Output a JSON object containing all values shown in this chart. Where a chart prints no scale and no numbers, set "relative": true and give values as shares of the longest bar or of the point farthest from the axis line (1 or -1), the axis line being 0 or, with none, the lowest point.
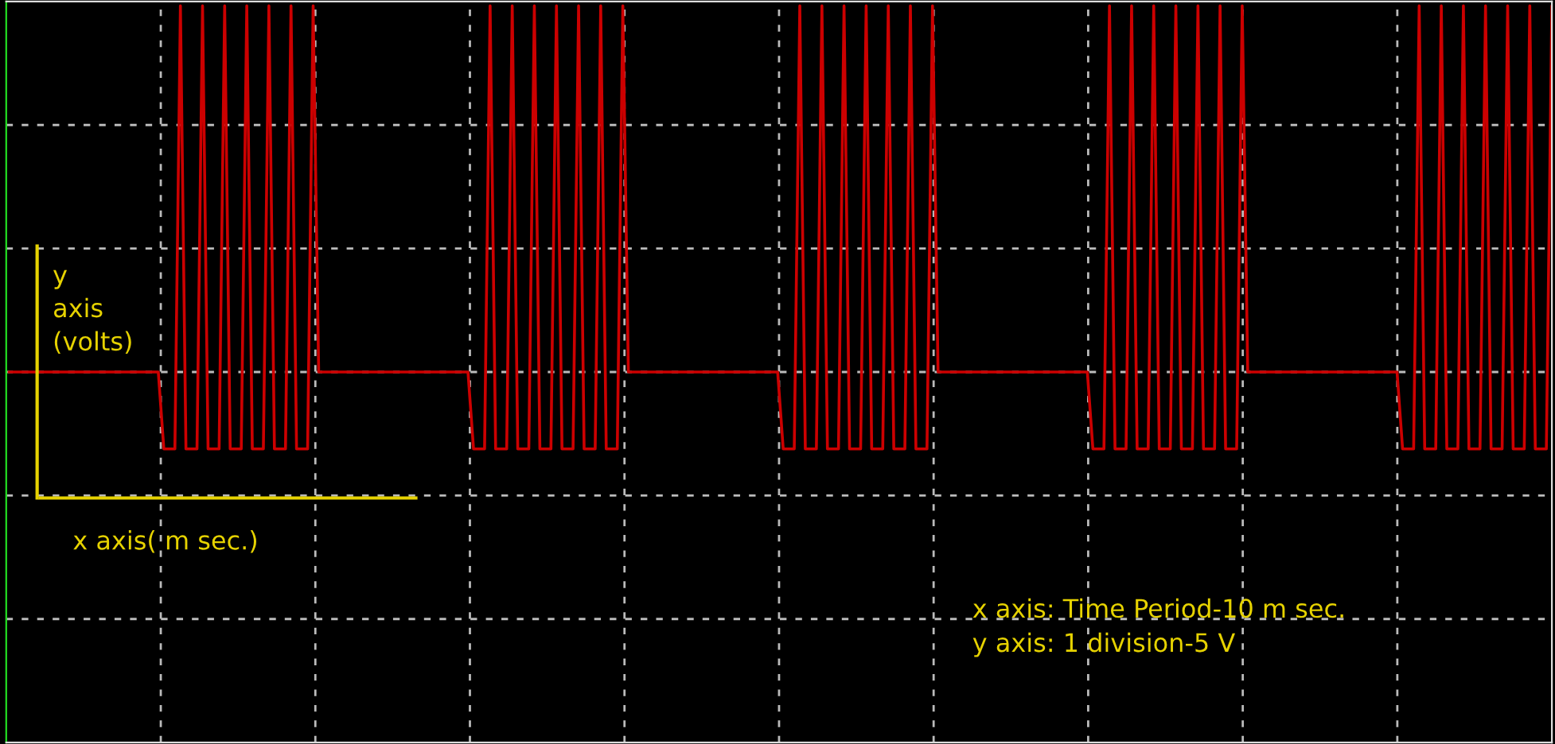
{
  "chart_data": {
    "type": "line",
    "relative": true,
    "grid": true,
    "xlabel": "x axis( m sec.)",
    "ylabel": "y\naxis\n(volts)",
    "annotations": [
      "x axis: Time Period-10 m sec.\ny axis: 1 division-5 V"
    ],
    "categories": [
      null,
      null,
      null,
      null,
      null,
      null,
      null,
      null,
      null,
      null,
      null,
      null,
      null,
      null,
      null,
      null,
      null,
      null,
      null,
      null,
      null,
      null,
      null,
      null,
      null,
      null,
      null,
      null,
      null,
      null,
      null,
      null,
      null,
      null,
      null,
      null,
      null,
      null,
      null,
      null,
      null,
      null,
      null,
      null,
      null,
      null,
      null,
      null,
      null,
      null,
      null,
      null,
      null,
      null,
      null,
      null,
      null,
      null,
      null,
      null,
      null,
      null,
      null,
      null,
      null,
      null,
      null,
      null,
      null,
      null,
      null,
      null,
      null,
      null,
      null,
      null,
      null,
      null,
      null,
      null,
      null,
      null,
      null,
      null,
      null,
      null,
      null,
      null,
      null,
      null,
      null,
      null,
      null,
      null,
      null,
      null,
      null,
      null,
      null,
      null,
      null,
      null,
      null,
      null,
      null,
      null,
      null,
      null,
      null,
      null,
      null,
      null,
      null,
      null,
      null,
      null,
      null,
      null,
      null,
      null,
      null,
      null,
      null,
      null,
      null,
      null,
      null,
      null,
      null,
      null,
      null,
      null,
      null,
      null,
      null,
      null,
      null,
      null,
      null,
      null,
      null,
      null,
      null,
      null,
      null,
      null,
      null,
      null,
      null,
      null,
      null,
      null,
      null,
      null,
      null,
      null,
      null,
      null,
      null,
      null,
      null,
      null,
      null,
      null,
      null,
      null,
      null,
      null,
      null,
      null,
      null,
      null,
      null,
      null,
      null,
      null,
      null,
      null,
      null,
      null,
      null,
      null,
      null,
      null,
      null,
      null,
      null,
      null,
      null,
      null,
      null,
      null,
      null,
      null,
      null,
      null,
      null,
      null,
      null,
      null,
      null,
      null,
      null,
      null,
      null,
      null,
      null,
      null,
      null,
      null,
      null,
      null,
      null,
      null,
      null,
      null,
      null,
      null,
      null,
      null,
      null,
      null,
      null,
      null,
      null,
      null,
      null,
      null,
      null,
      null,
      null,
      null,
      null,
      null,
      null,
      null,
      null,
      null,
      null,
      null,
      null,
      null,
      null,
      null,
      null,
      null,
      null,
      null,
      null,
      null,
      null,
      null,
      null,
      null,
      null,
      null,
      null,
      null,
      null,
      null,
      null,
      null,
      null,
      null,
      null,
      null,
      null,
      null,
      null,
      null,
      null,
      null,
      null,
      null,
      null,
      null,
      null,
      null,
      null,
      null
    ],
    "series": [
      {
        "color": "#cc0000",
        "values": [
          0,
          0,
          0,
          0,
          0,
          0,
          0,
          0,
          0,
          0,
          0,
          0,
          0,
          0,
          0,
          0,
          0,
          0,
          0,
          0,
          0,
          0,
          0,
          0,
          0,
          0,
          0,
          0,
          -0.21,
          -0.21,
          -0.21,
          1,
          -0.21,
          -0.21,
          -0.21,
          1,
          -0.21,
          -0.21,
          -0.21,
          1,
          -0.21,
          -0.21,
          -0.21,
          1,
          -0.21,
          -0.21,
          -0.21,
          1,
          -0.21,
          -0.21,
          -0.21,
          1,
          -0.21,
          -0.21,
          -0.21,
          1,
          0,
          0,
          0,
          0,
          0,
          0,
          0,
          0,
          0,
          0,
          0,
          0,
          0,
          0,
          0,
          0,
          0,
          0,
          0,
          0,
          0,
          0,
          0,
          0,
          0,
          0,
          0,
          0,
          -0.21,
          -0.21,
          -0.21,
          1,
          -0.21,
          -0.21,
          -0.21,
          1,
          -0.21,
          -0.21,
          -0.21,
          1,
          -0.21,
          -0.21,
          -0.21,
          1,
          -0.21,
          -0.21,
          -0.21,
          1,
          -0.21,
          -0.21,
          -0.21,
          1,
          -0.21,
          -0.21,
          -0.21,
          1,
          0,
          0,
          0,
          0,
          0,
          0,
          0,
          0,
          0,
          0,
          0,
          0,
          0,
          0,
          0,
          0,
          0,
          0,
          0,
          0,
          0,
          0,
          0,
          0,
          0,
          0,
          0,
          0,
          -0.21,
          -0.21,
          -0.21,
          1,
          -0.21,
          -0.21,
          -0.21,
          1,
          -0.21,
          -0.21,
          -0.21,
          1,
          -0.21,
          -0.21,
          -0.21,
          1,
          -0.21,
          -0.21,
          -0.21,
          1,
          -0.21,
          -0.21,
          -0.21,
          1,
          -0.21,
          -0.21,
          -0.21,
          1,
          0,
          0,
          0,
          0,
          0,
          0,
          0,
          0,
          0,
          0,
          0,
          0,
          0,
          0,
          0,
          0,
          0,
          0,
          0,
          0,
          0,
          0,
          0,
          0,
          0,
          0,
          0,
          0,
          -0.21,
          -0.21,
          -0.21,
          1,
          -0.21,
          -0.21,
          -0.21,
          1,
          -0.21,
          -0.21,
          -0.21,
          1,
          -0.21,
          -0.21,
          -0.21,
          1,
          -0.21,
          -0.21,
          -0.21,
          1,
          -0.21,
          -0.21,
          -0.21,
          1,
          -0.21,
          -0.21,
          -0.21,
          1,
          0,
          0,
          0,
          0,
          0,
          0,
          0,
          0,
          0,
          0,
          0,
          0,
          0,
          0,
          0,
          0,
          0,
          0,
          0,
          0,
          0,
          0,
          0,
          0,
          0,
          0,
          0,
          0,
          -0.21,
          -0.21,
          -0.21,
          1,
          -0.21,
          -0.21,
          -0.21,
          1,
          -0.21,
          -0.21,
          -0.21,
          1,
          -0.21,
          -0.21,
          -0.21,
          1,
          -0.21,
          -0.21,
          -0.21,
          1,
          -0.21,
          -0.21,
          -0.21,
          1,
          -0.21,
          -0.21,
          -0.21,
          1
        ]
      }
    ]
  }
}
